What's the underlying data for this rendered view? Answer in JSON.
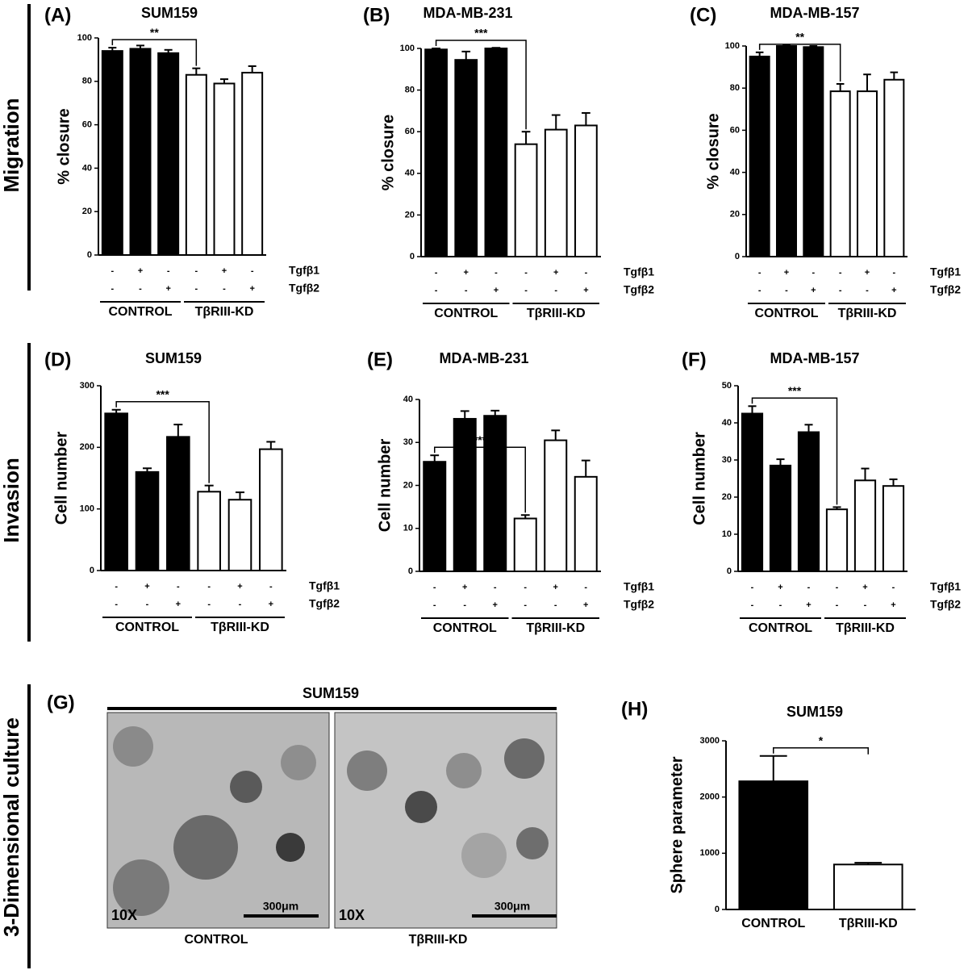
{
  "figure": {
    "row_labels": [
      "Migration",
      "Invasion",
      "3-Dimensional culture"
    ],
    "panel_g": {
      "label": "(G)",
      "title": "SUM159",
      "images": [
        {
          "magnification": "10X",
          "scale": "300μm",
          "caption": "CONTROL"
        },
        {
          "magnification": "10X",
          "scale": "300μm",
          "caption": "TβRIII-KD"
        }
      ]
    }
  },
  "chart_data": [
    {
      "type": "bar",
      "panel": "(A)",
      "title": "SUM159",
      "ylabel": "% closure",
      "values": [
        94,
        95,
        93,
        83,
        79,
        84
      ],
      "errors": [
        1.5,
        1.5,
        1.5,
        3,
        2,
        3
      ],
      "colors": [
        "#000000",
        "#000000",
        "#000000",
        "#ffffff",
        "#ffffff",
        "#ffffff"
      ],
      "ylim": [
        0,
        100
      ],
      "yticks": [
        0,
        20,
        40,
        60,
        80,
        100
      ],
      "treatments": [
        {
          "name": "Tgfβ1",
          "signs": [
            "-",
            "+",
            "-",
            "-",
            "+",
            "-"
          ]
        },
        {
          "name": "Tgfβ2",
          "signs": [
            "-",
            "-",
            "+",
            "-",
            "-",
            "+"
          ]
        }
      ],
      "groups": [
        "CONTROL",
        "TβRIII-KD"
      ],
      "significance": "**"
    },
    {
      "type": "bar",
      "panel": "(B)",
      "title": "MDA-MB-231",
      "ylabel": "% closure",
      "values": [
        99.5,
        94.5,
        100,
        54,
        61,
        63
      ],
      "errors": [
        0.5,
        4,
        0.3,
        6,
        7,
        6
      ],
      "colors": [
        "#000000",
        "#000000",
        "#000000",
        "#ffffff",
        "#ffffff",
        "#ffffff"
      ],
      "ylim": [
        0,
        100
      ],
      "yticks": [
        0,
        20,
        40,
        60,
        80,
        100
      ],
      "treatments": [
        {
          "name": "Tgfβ1",
          "signs": [
            "-",
            "+",
            "-",
            "-",
            "+",
            "-"
          ]
        },
        {
          "name": "Tgfβ2",
          "signs": [
            "-",
            "-",
            "+",
            "-",
            "-",
            "+"
          ]
        }
      ],
      "groups": [
        "CONTROL",
        "TβRIII-KD"
      ],
      "significance": "***"
    },
    {
      "type": "bar",
      "panel": "(C)",
      "title": "MDA-MB-157",
      "ylabel": "% closure",
      "values": [
        95,
        100,
        99.5,
        78.5,
        78.5,
        84
      ],
      "errors": [
        2,
        0.3,
        0.5,
        3.5,
        8,
        3.5
      ],
      "colors": [
        "#000000",
        "#000000",
        "#000000",
        "#ffffff",
        "#ffffff",
        "#ffffff"
      ],
      "ylim": [
        0,
        100
      ],
      "yticks": [
        0,
        20,
        40,
        60,
        80,
        100
      ],
      "treatments": [
        {
          "name": "Tgfβ1",
          "signs": [
            "-",
            "+",
            "-",
            "-",
            "+",
            "-"
          ]
        },
        {
          "name": "Tgfβ2",
          "signs": [
            "-",
            "-",
            "+",
            "-",
            "-",
            "+"
          ]
        }
      ],
      "groups": [
        "CONTROL",
        "TβRIII-KD"
      ],
      "significance": "**"
    },
    {
      "type": "bar",
      "panel": "(D)",
      "title": "SUM159",
      "ylabel": "Cell number",
      "values": [
        255,
        160,
        217,
        128,
        115,
        197
      ],
      "errors": [
        6,
        6,
        20,
        10,
        12,
        12
      ],
      "colors": [
        "#000000",
        "#000000",
        "#000000",
        "#ffffff",
        "#ffffff",
        "#ffffff"
      ],
      "ylim": [
        0,
        300
      ],
      "yticks": [
        0,
        100,
        200,
        300
      ],
      "treatments": [
        {
          "name": "Tgfβ1",
          "signs": [
            "-",
            "+",
            "-",
            "-",
            "+",
            "-"
          ]
        },
        {
          "name": "Tgfβ2",
          "signs": [
            "-",
            "-",
            "+",
            "-",
            "-",
            "+"
          ]
        }
      ],
      "groups": [
        "CONTROL",
        "TβRIII-KD"
      ],
      "significance": "***"
    },
    {
      "type": "bar",
      "panel": "(E)",
      "title": "MDA-MB-231",
      "ylabel": "Cell number",
      "values": [
        25.5,
        35.5,
        36.2,
        12.3,
        30.5,
        22
      ],
      "errors": [
        1.5,
        1.8,
        1.2,
        0.8,
        2.3,
        3.8
      ],
      "colors": [
        "#000000",
        "#000000",
        "#000000",
        "#ffffff",
        "#ffffff",
        "#ffffff"
      ],
      "ylim": [
        0,
        40
      ],
      "yticks": [
        0,
        10,
        20,
        30,
        40
      ],
      "treatments": [
        {
          "name": "Tgfβ1",
          "signs": [
            "-",
            "+",
            "-",
            "-",
            "+",
            "-"
          ]
        },
        {
          "name": "Tgfβ2",
          "signs": [
            "-",
            "-",
            "+",
            "-",
            "-",
            "+"
          ]
        }
      ],
      "groups": [
        "CONTROL",
        "TβRIII-KD"
      ],
      "significance": "***"
    },
    {
      "type": "bar",
      "panel": "(F)",
      "title": "MDA-MB-157",
      "ylabel": "Cell number",
      "values": [
        42.5,
        28.5,
        37.5,
        16.7,
        24.5,
        23
      ],
      "errors": [
        2,
        1.7,
        2,
        0.6,
        3.2,
        1.8
      ],
      "colors": [
        "#000000",
        "#000000",
        "#000000",
        "#ffffff",
        "#ffffff",
        "#ffffff"
      ],
      "ylim": [
        0,
        50
      ],
      "yticks": [
        0,
        10,
        20,
        30,
        40,
        50
      ],
      "treatments": [
        {
          "name": "Tgfβ1",
          "signs": [
            "-",
            "+",
            "-",
            "-",
            "+",
            "-"
          ]
        },
        {
          "name": "Tgfβ2",
          "signs": [
            "-",
            "-",
            "+",
            "-",
            "-",
            "+"
          ]
        }
      ],
      "groups": [
        "CONTROL",
        "TβRIII-KD"
      ],
      "significance": "***"
    },
    {
      "type": "bar",
      "panel": "(H)",
      "title": "SUM159",
      "ylabel": "Sphere parameter",
      "categories": [
        "CONTROL",
        "TβRIII-KD"
      ],
      "values": [
        2280,
        800
      ],
      "errors": [
        450,
        30
      ],
      "colors": [
        "#000000",
        "#ffffff"
      ],
      "ylim": [
        0,
        3000
      ],
      "yticks": [
        0,
        1000,
        2000,
        3000
      ],
      "significance": "*"
    }
  ]
}
